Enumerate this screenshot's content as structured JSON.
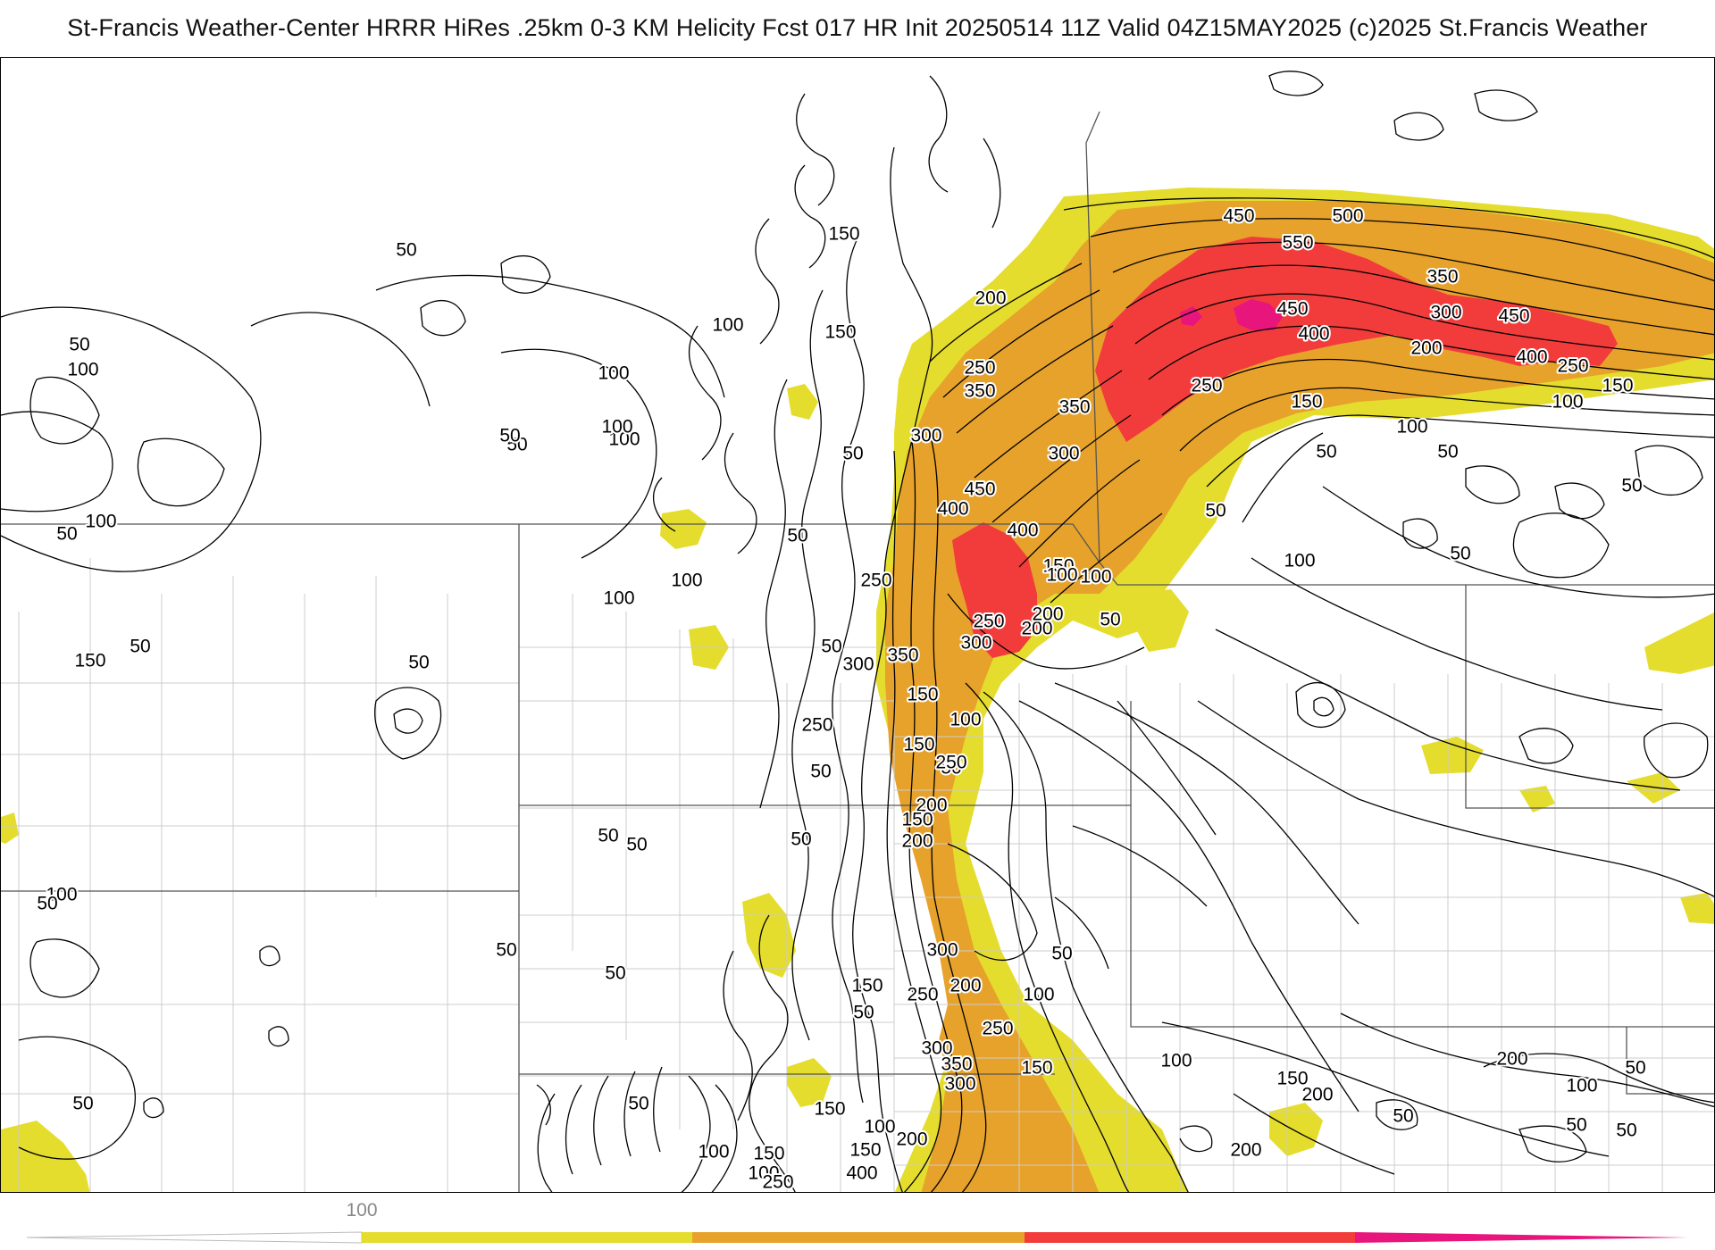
{
  "header": {
    "title": "St-Francis Weather-Center HRRR HiRes .25km 0-3 KM Helicity Fcst 017 HR Init 20250514 11Z  Valid 04Z15MAY2025    (c)2025 St.Francis Weather"
  },
  "colors": {
    "bin_100_200": "#e5dd2e",
    "bin_200_300": "#e7a22b",
    "bin_300_400": "#f2a024",
    "bin_400_500": "#f23c3c",
    "bin_500_plus": "#e8157d",
    "contour": "#000000",
    "boundary": "#555555",
    "county": "#cccccc"
  },
  "colorbar": {
    "tick_label": "100",
    "bins": [
      "100",
      "200",
      "300",
      "400",
      "500"
    ]
  },
  "map": {
    "contour_labels": [
      {
        "text": "500"
      },
      {
        "text": "450"
      },
      {
        "text": "550"
      },
      {
        "text": "350"
      },
      {
        "text": "450"
      },
      {
        "text": "300"
      },
      {
        "text": "450"
      },
      {
        "text": "400"
      },
      {
        "text": "200"
      },
      {
        "text": "400"
      },
      {
        "text": "250"
      },
      {
        "text": "150"
      },
      {
        "text": "250"
      },
      {
        "text": "150"
      },
      {
        "text": "100"
      },
      {
        "text": "100"
      },
      {
        "text": "50"
      },
      {
        "text": "50"
      },
      {
        "text": "50"
      },
      {
        "text": "50"
      },
      {
        "text": "100"
      },
      {
        "text": "50"
      },
      {
        "text": "200"
      },
      {
        "text": "200"
      },
      {
        "text": "150"
      },
      {
        "text": "150"
      },
      {
        "text": "100"
      },
      {
        "text": "250"
      },
      {
        "text": "350"
      },
      {
        "text": "350"
      },
      {
        "text": "300"
      },
      {
        "text": "300"
      },
      {
        "text": "450"
      },
      {
        "text": "400"
      },
      {
        "text": "400"
      },
      {
        "text": "150"
      },
      {
        "text": "100"
      },
      {
        "text": "200"
      },
      {
        "text": "250"
      },
      {
        "text": "300"
      },
      {
        "text": "50"
      },
      {
        "text": "50"
      },
      {
        "text": "50"
      },
      {
        "text": "100"
      },
      {
        "text": "50"
      },
      {
        "text": "100"
      },
      {
        "text": "100"
      },
      {
        "text": "50"
      },
      {
        "text": "50"
      },
      {
        "text": "100"
      },
      {
        "text": "50"
      },
      {
        "text": "100"
      },
      {
        "text": "50"
      },
      {
        "text": "50"
      },
      {
        "text": "50"
      },
      {
        "text": "50"
      },
      {
        "text": "50"
      },
      {
        "text": "100"
      },
      {
        "text": "50"
      },
      {
        "text": "100"
      },
      {
        "text": "250"
      },
      {
        "text": "300"
      },
      {
        "text": "350"
      },
      {
        "text": "100"
      },
      {
        "text": "150"
      },
      {
        "text": "150"
      },
      {
        "text": "250"
      },
      {
        "text": "50"
      },
      {
        "text": "200"
      },
      {
        "text": "250"
      },
      {
        "text": "200"
      },
      {
        "text": "150"
      },
      {
        "text": "50"
      },
      {
        "text": "50"
      },
      {
        "text": "100"
      },
      {
        "text": "300"
      },
      {
        "text": "50"
      },
      {
        "text": "150"
      },
      {
        "text": "250"
      },
      {
        "text": "200"
      },
      {
        "text": "250"
      },
      {
        "text": "50"
      },
      {
        "text": "300"
      },
      {
        "text": "350"
      },
      {
        "text": "300"
      },
      {
        "text": "100"
      },
      {
        "text": "150"
      },
      {
        "text": "50"
      },
      {
        "text": "100"
      },
      {
        "text": "150"
      },
      {
        "text": "100"
      },
      {
        "text": "200"
      },
      {
        "text": "150"
      },
      {
        "text": "400"
      },
      {
        "text": "250"
      },
      {
        "text": "100"
      },
      {
        "text": "50"
      },
      {
        "text": "150"
      },
      {
        "text": "200"
      },
      {
        "text": "200"
      },
      {
        "text": "150"
      },
      {
        "text": "100"
      },
      {
        "text": "200"
      },
      {
        "text": "50"
      },
      {
        "text": "100"
      },
      {
        "text": "50"
      },
      {
        "text": "50"
      },
      {
        "text": "50"
      },
      {
        "text": "50"
      },
      {
        "text": "150"
      },
      {
        "text": "50"
      },
      {
        "text": "100"
      },
      {
        "text": "50"
      }
    ]
  }
}
